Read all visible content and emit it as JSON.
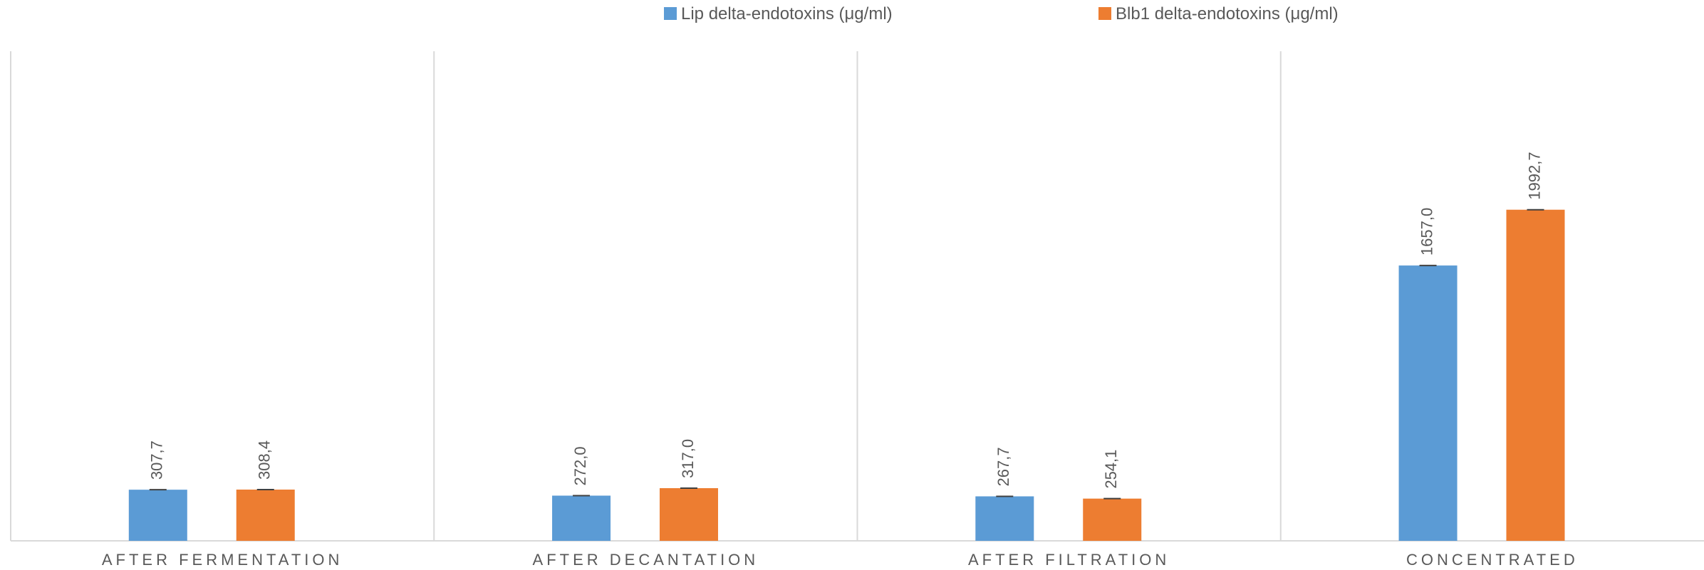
{
  "chart_data": {
    "type": "bar",
    "title": "",
    "xlabel": "",
    "ylabel": "",
    "ylim": [
      0,
      2500
    ],
    "grid": false,
    "legend_position": "top-right",
    "categories": [
      "AFTER FERMENTATION",
      "AFTER DECANTATION",
      "AFTER FILTRATION",
      "CONCENTRATED"
    ],
    "series": [
      {
        "name": "Lip delta-endotoxins (μg/ml)",
        "color": "#5B9BD5",
        "values": [
          307.7,
          272.0,
          267.7,
          1657.0
        ],
        "labels": [
          "307,7",
          "272,0",
          "267,7",
          "1657,0"
        ]
      },
      {
        "name": "Blb1 delta-endotoxins (μg/ml)",
        "color": "#ED7D31",
        "values": [
          308.4,
          317.0,
          254.1,
          1992.7
        ],
        "labels": [
          "308,4",
          "317,0",
          "254,1",
          "1992,7"
        ]
      }
    ]
  }
}
